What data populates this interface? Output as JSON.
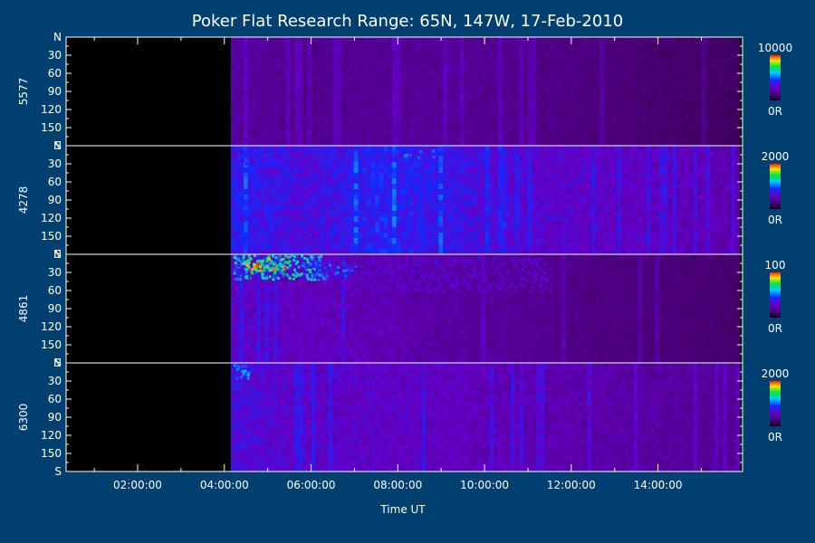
{
  "chart_data": {
    "type": "heatmap",
    "title": "Poker Flat Research Range: 65N, 147W, 17-Feb-2010",
    "xlabel": "Time UT",
    "x_ticks": [
      "02:00:00",
      "04:00:00",
      "06:00:00",
      "08:00:00",
      "10:00:00",
      "12:00:00",
      "14:00:00"
    ],
    "x_tick_hours": [
      2,
      4,
      6,
      8,
      10,
      12,
      14
    ],
    "x_range_hours": [
      0.35,
      15.95
    ],
    "data_start_hour": 4.15,
    "y_axis": {
      "tick_labels": [
        "N",
        "30",
        "60",
        "90",
        "120",
        "150",
        "S"
      ],
      "tick_values": [
        0,
        30,
        60,
        90,
        120,
        150,
        180
      ],
      "range": [
        0,
        180
      ]
    },
    "panels": [
      {
        "name": "5577",
        "colorbar": {
          "max_label": "10000",
          "min_label": "0R"
        },
        "activity": [
          0.22,
          0.18,
          0.2,
          0.2,
          0.18,
          0.15,
          0.12,
          0.1
        ],
        "hotspots": []
      },
      {
        "name": "4278",
        "colorbar": {
          "max_label": "2000",
          "min_label": "0R"
        },
        "activity": [
          0.4,
          0.35,
          0.42,
          0.38,
          0.32,
          0.3,
          0.28,
          0.25
        ],
        "hotspots": [
          {
            "hour_start": 4.15,
            "hour_end": 5.0,
            "lat_start": 0,
            "lat_end": 30,
            "level": 0.4
          },
          {
            "hour_start": 7.9,
            "hour_end": 8.8,
            "lat_start": 5,
            "lat_end": 20,
            "level": 0.45
          }
        ]
      },
      {
        "name": "4861",
        "colorbar": {
          "max_label": "100",
          "min_label": "0R"
        },
        "activity": [
          0.3,
          0.28,
          0.26,
          0.22,
          0.2,
          0.16,
          0.14,
          0.12
        ],
        "hotspots": [
          {
            "hour_start": 4.2,
            "hour_end": 6.2,
            "lat_start": 0,
            "lat_end": 40,
            "level": 0.62
          },
          {
            "hour_start": 4.4,
            "hour_end": 5.4,
            "lat_start": 5,
            "lat_end": 25,
            "level": 0.85
          },
          {
            "hour_start": 6.0,
            "hour_end": 7.0,
            "lat_start": 10,
            "lat_end": 40,
            "level": 0.45
          },
          {
            "hour_start": 7.0,
            "hour_end": 11.5,
            "lat_start": 5,
            "lat_end": 60,
            "level": 0.3
          }
        ]
      },
      {
        "name": "6300",
        "colorbar": {
          "max_label": "2000",
          "min_label": "0R"
        },
        "activity": [
          0.35,
          0.3,
          0.3,
          0.28,
          0.26,
          0.24,
          0.22,
          0.2
        ],
        "hotspots": [
          {
            "hour_start": 4.15,
            "hour_end": 4.6,
            "lat_start": 0,
            "lat_end": 25,
            "level": 0.5
          }
        ]
      }
    ]
  }
}
